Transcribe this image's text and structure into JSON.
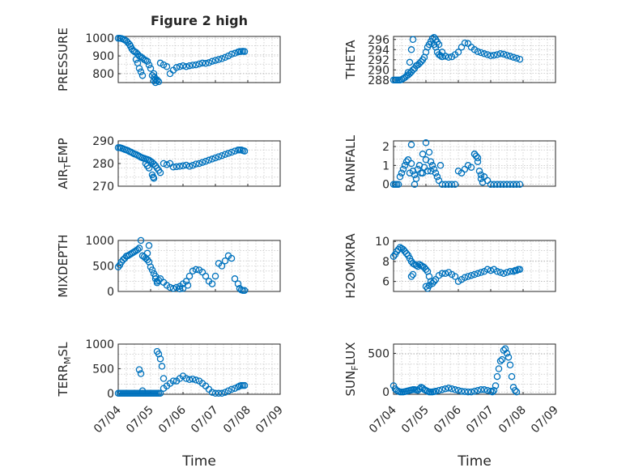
{
  "figure_title": "Figure 2 high",
  "marker_color": "#0072bd",
  "chart_data": [
    {
      "type": "scatter",
      "title": "Figure 2 high",
      "ylabel": "PRESSURE",
      "ylim": [
        750,
        1010
      ],
      "yticks": [
        "800",
        "900",
        "1000"
      ],
      "ytickvals": [
        800,
        900,
        1000
      ],
      "xlim": [
        0,
        5
      ],
      "xticks": [],
      "xlabel": "",
      "x": [
        0,
        0.05,
        0.1,
        0.15,
        0.2,
        0.25,
        0.3,
        0.35,
        0.38,
        0.42,
        0.46,
        0.5,
        0.55,
        0.6,
        0.65,
        0.7,
        0.75,
        0.8,
        0.85,
        0.9,
        0.95,
        1.0,
        1.05,
        1.1,
        1.15,
        1.2,
        1.3,
        1.4,
        1.5,
        1.6,
        1.7,
        1.8,
        1.9,
        2.0,
        2.1,
        2.2,
        2.3,
        2.4,
        2.5,
        2.6,
        2.7,
        2.8,
        2.9,
        3.0,
        3.1,
        3.2,
        3.3,
        3.4,
        3.5,
        3.6,
        3.7,
        3.75,
        3.8,
        3.85,
        3.9,
        0.7,
        0.75,
        0.55,
        0.6,
        0.65,
        1.1,
        1.12,
        1.15,
        1.2,
        1.25
      ],
      "y": [
        1000,
        1000,
        998,
        995,
        990,
        985,
        975,
        965,
        955,
        940,
        930,
        925,
        920,
        910,
        900,
        895,
        888,
        880,
        875,
        870,
        850,
        830,
        790,
        760,
        750,
        765,
        860,
        850,
        840,
        800,
        820,
        835,
        840,
        845,
        840,
        845,
        848,
        850,
        855,
        860,
        858,
        862,
        870,
        875,
        880,
        885,
        892,
        900,
        910,
        915,
        922,
        925,
        925,
        926,
        925,
        810,
        790,
        880,
        860,
        830,
        800,
        780,
        770,
        760,
        755
      ]
    },
    {
      "type": "scatter",
      "title": "",
      "ylabel": "THETA",
      "ylim": [
        287.5,
        296.6
      ],
      "yticks": [
        "288",
        "290",
        "292",
        "294",
        "296"
      ],
      "ytickvals": [
        288,
        290,
        292,
        294,
        296
      ],
      "xlim": [
        0,
        5
      ],
      "xticks": [],
      "xlabel": "",
      "x": [
        0,
        0.05,
        0.1,
        0.15,
        0.2,
        0.25,
        0.3,
        0.35,
        0.4,
        0.45,
        0.5,
        0.55,
        0.6,
        0.65,
        0.7,
        0.75,
        0.8,
        0.85,
        0.9,
        0.95,
        1.0,
        1.05,
        1.1,
        1.15,
        1.2,
        1.25,
        1.3,
        1.35,
        1.4,
        1.5,
        1.6,
        1.7,
        1.8,
        1.9,
        2.0,
        2.1,
        2.2,
        2.3,
        2.4,
        2.5,
        2.6,
        2.7,
        2.8,
        2.9,
        3.0,
        3.1,
        3.2,
        3.3,
        3.4,
        3.5,
        3.6,
        3.7,
        3.8,
        3.9,
        0.45,
        0.5,
        0.55,
        0.6,
        1.25,
        1.3,
        1.35,
        1.4,
        1.45,
        1.5
      ],
      "y": [
        288,
        288,
        288,
        288,
        288,
        288.1,
        288.3,
        288.5,
        288.8,
        289,
        289.3,
        289.6,
        290,
        290.3,
        290.8,
        291,
        291.3,
        291.6,
        292,
        292.5,
        293.5,
        294.5,
        295,
        295.6,
        296.2,
        296.4,
        296,
        295.5,
        295,
        293.5,
        292.7,
        292.5,
        292.6,
        293,
        293.5,
        294.5,
        295.3,
        295.2,
        294.5,
        294,
        293.6,
        293.4,
        293.2,
        293,
        292.8,
        292.9,
        293,
        293.2,
        293.1,
        292.9,
        292.7,
        292.5,
        292.3,
        292.1,
        289.5,
        291.5,
        294,
        296,
        295,
        294.5,
        293.5,
        293,
        292.8,
        292.6
      ]
    },
    {
      "type": "scatter",
      "title": "",
      "ylabel": "AIR_TEMP",
      "ylim": [
        270,
        290
      ],
      "yticks": [
        "270",
        "280",
        "290"
      ],
      "ytickvals": [
        270,
        280,
        290
      ],
      "xlim": [
        0,
        5
      ],
      "xticks": [],
      "xlabel": "",
      "x": [
        0,
        0.05,
        0.1,
        0.15,
        0.2,
        0.25,
        0.3,
        0.35,
        0.4,
        0.45,
        0.5,
        0.55,
        0.6,
        0.65,
        0.7,
        0.75,
        0.8,
        0.85,
        0.9,
        0.95,
        1.0,
        1.05,
        1.1,
        1.15,
        1.2,
        1.25,
        1.3,
        1.4,
        1.5,
        1.6,
        1.7,
        1.8,
        1.9,
        2.0,
        2.1,
        2.2,
        2.3,
        2.4,
        2.5,
        2.6,
        2.7,
        2.8,
        2.9,
        3.0,
        3.1,
        3.2,
        3.3,
        3.4,
        3.5,
        3.6,
        3.7,
        3.75,
        3.8,
        3.85,
        3.9,
        0.85,
        0.9,
        0.95,
        1.05,
        1.08,
        1.1
      ],
      "y": [
        287,
        287,
        286.8,
        286.5,
        286.2,
        286,
        285.7,
        285.3,
        285,
        284.6,
        284.2,
        284,
        283.6,
        283.2,
        282.8,
        282.5,
        282.3,
        282,
        281.8,
        281.5,
        281,
        280.5,
        279.8,
        279,
        278,
        277,
        276,
        280,
        279.5,
        280,
        278.5,
        278.6,
        278.8,
        279,
        279.3,
        278.8,
        279.2,
        279.8,
        280,
        280.5,
        281,
        281.5,
        282,
        282.5,
        283,
        283.5,
        284,
        284.5,
        285,
        285.5,
        286,
        286,
        286,
        285.7,
        285.5,
        280,
        279,
        278,
        275,
        274,
        273.5
      ]
    },
    {
      "type": "scatter",
      "title": "",
      "ylabel": "RAINFALL",
      "ylim": [
        -0.1,
        2.3
      ],
      "yticks": [
        "0",
        "1",
        "2"
      ],
      "ytickvals": [
        0,
        1,
        2
      ],
      "xlim": [
        0,
        5
      ],
      "xticks": [],
      "xlabel": "",
      "x": [
        0,
        0.05,
        0.1,
        0.15,
        0.2,
        0.25,
        0.3,
        0.35,
        0.4,
        0.45,
        0.5,
        0.55,
        0.6,
        0.65,
        0.7,
        0.75,
        0.8,
        0.85,
        0.9,
        0.95,
        1.0,
        1.05,
        1.1,
        1.15,
        1.2,
        1.25,
        1.3,
        1.35,
        1.4,
        1.45,
        1.5,
        1.6,
        1.7,
        1.8,
        1.9,
        2.0,
        2.1,
        2.2,
        2.3,
        2.4,
        2.5,
        2.6,
        2.7,
        2.8,
        2.9,
        3.0,
        3.1,
        3.2,
        3.3,
        3.4,
        3.5,
        3.6,
        3.7,
        3.8,
        3.9,
        0.55,
        0.65,
        0.9,
        1.0,
        1.15,
        2.5,
        2.55,
        2.6,
        2.65,
        2.7,
        2.75
      ],
      "y": [
        0,
        0,
        0,
        0,
        0.4,
        0.6,
        0.8,
        1.0,
        1.2,
        1.3,
        0.6,
        2.1,
        0.7,
        0.5,
        0.3,
        0.8,
        1.0,
        0.6,
        1.6,
        0.9,
        2.2,
        0.7,
        1.7,
        1.2,
        1.0,
        0.8,
        0.6,
        0.4,
        0.2,
        1.0,
        0,
        0,
        0,
        0,
        0,
        0.7,
        0.6,
        0.8,
        1.0,
        0.9,
        1.6,
        1.4,
        0.5,
        0.4,
        0.2,
        0,
        0,
        0,
        0,
        0,
        0,
        0,
        0,
        0,
        0,
        1.1,
        0,
        0.6,
        1.3,
        0.7,
        1.6,
        1.5,
        1.2,
        0.7,
        0.3,
        0.1
      ]
    },
    {
      "type": "scatter",
      "title": "",
      "ylabel": "MIXDEPTH",
      "ylim": [
        0,
        1000
      ],
      "yticks": [
        "0",
        "500",
        "1000"
      ],
      "ytickvals": [
        0,
        500,
        1000
      ],
      "xlim": [
        0,
        5
      ],
      "xticks": [],
      "xlabel": "",
      "x": [
        0,
        0.05,
        0.1,
        0.15,
        0.2,
        0.25,
        0.3,
        0.35,
        0.4,
        0.45,
        0.5,
        0.55,
        0.6,
        0.65,
        0.7,
        0.75,
        0.8,
        0.85,
        0.9,
        0.95,
        1.0,
        1.05,
        1.1,
        1.15,
        1.2,
        1.25,
        1.3,
        1.4,
        1.5,
        1.6,
        1.7,
        1.8,
        1.9,
        2.0,
        2.1,
        2.2,
        2.3,
        2.4,
        2.5,
        2.6,
        2.7,
        2.8,
        2.9,
        3.0,
        3.1,
        3.2,
        3.3,
        3.4,
        3.5,
        3.6,
        3.7,
        3.75,
        3.8,
        3.85,
        3.9,
        0.9,
        0.95,
        1.15,
        1.2,
        1.9,
        2.0,
        2.15
      ],
      "y": [
        480,
        520,
        580,
        620,
        650,
        690,
        700,
        720,
        740,
        760,
        780,
        800,
        820,
        850,
        1000,
        700,
        680,
        650,
        620,
        580,
        480,
        420,
        350,
        250,
        170,
        220,
        250,
        180,
        120,
        80,
        60,
        80,
        100,
        150,
        200,
        300,
        400,
        430,
        420,
        380,
        300,
        200,
        150,
        300,
        550,
        500,
        600,
        700,
        650,
        250,
        150,
        60,
        30,
        20,
        20,
        750,
        900,
        300,
        200,
        50,
        60,
        120
      ]
    },
    {
      "type": "scatter",
      "title": "",
      "ylabel": "H2OMIXRA",
      "ylim": [
        5,
        10.1
      ],
      "yticks": [
        "6",
        "8",
        "10"
      ],
      "ytickvals": [
        6,
        8,
        10
      ],
      "xlim": [
        0,
        5
      ],
      "xticks": [],
      "xlabel": "",
      "x": [
        0,
        0.05,
        0.1,
        0.15,
        0.2,
        0.25,
        0.3,
        0.35,
        0.4,
        0.45,
        0.5,
        0.55,
        0.6,
        0.65,
        0.7,
        0.75,
        0.8,
        0.85,
        0.9,
        0.95,
        1.0,
        1.05,
        1.1,
        1.15,
        1.2,
        1.25,
        1.3,
        1.4,
        1.5,
        1.6,
        1.7,
        1.8,
        1.9,
        2.0,
        2.1,
        2.2,
        2.3,
        2.4,
        2.5,
        2.6,
        2.7,
        2.8,
        2.9,
        3.0,
        3.1,
        3.2,
        3.3,
        3.4,
        3.5,
        3.6,
        3.7,
        3.75,
        3.8,
        3.85,
        3.9,
        0.55,
        0.6,
        1.0,
        1.05,
        1.1
      ],
      "y": [
        8.5,
        8.7,
        9.0,
        9.2,
        9.4,
        9.3,
        9.2,
        9.0,
        8.8,
        8.6,
        8.3,
        8.0,
        7.8,
        7.7,
        7.6,
        7.5,
        7.7,
        7.6,
        7.5,
        7.4,
        7.2,
        7.0,
        6.5,
        6.0,
        5.8,
        6.0,
        6.2,
        6.6,
        6.8,
        6.8,
        6.9,
        6.7,
        6.5,
        6.0,
        6.2,
        6.4,
        6.5,
        6.6,
        6.7,
        6.8,
        6.9,
        7.0,
        7.2,
        7.1,
        7.2,
        7.0,
        6.9,
        6.8,
        6.9,
        7.0,
        7.0,
        7.1,
        7.1,
        7.2,
        7.2,
        6.5,
        6.7,
        5.5,
        5.3,
        5.6
      ]
    },
    {
      "type": "scatter",
      "title": "",
      "ylabel": "TERR_MSL",
      "ylim": [
        -20,
        1000
      ],
      "yticks": [
        "0",
        "500",
        "1000"
      ],
      "ytickvals": [
        0,
        500,
        1000
      ],
      "xlim": [
        0,
        5
      ],
      "xticks": [
        "07/04",
        "07/05",
        "07/06",
        "07/07",
        "07/08",
        "07/09"
      ],
      "xlabel": "Time",
      "x": [
        0,
        0.05,
        0.1,
        0.15,
        0.2,
        0.25,
        0.3,
        0.35,
        0.4,
        0.45,
        0.5,
        0.55,
        0.6,
        0.65,
        0.7,
        0.75,
        0.8,
        0.85,
        0.9,
        0.95,
        1.0,
        1.05,
        1.1,
        1.15,
        1.2,
        1.25,
        1.3,
        1.4,
        1.5,
        1.6,
        1.7,
        1.8,
        1.9,
        2.0,
        2.1,
        2.2,
        2.3,
        2.4,
        2.5,
        2.6,
        2.7,
        2.8,
        2.9,
        3.0,
        3.1,
        3.2,
        3.3,
        3.4,
        3.5,
        3.6,
        3.7,
        3.75,
        3.8,
        3.85,
        3.9,
        0.65,
        0.7,
        0.75,
        1.2,
        1.25,
        1.3,
        1.35,
        1.4
      ],
      "y": [
        0,
        0,
        0,
        0,
        0,
        0,
        0,
        0,
        0,
        0,
        0,
        0,
        0,
        0,
        0,
        0,
        0,
        0,
        0,
        0,
        0,
        0,
        0,
        0,
        0,
        0,
        0,
        100,
        150,
        200,
        250,
        250,
        300,
        350,
        300,
        280,
        290,
        270,
        250,
        200,
        150,
        80,
        20,
        0,
        0,
        0,
        20,
        50,
        80,
        100,
        130,
        150,
        160,
        160,
        160,
        480,
        400,
        50,
        850,
        800,
        700,
        550,
        300
      ]
    },
    {
      "type": "scatter",
      "title": "",
      "ylabel": "SUN_FLUX",
      "ylim": [
        -30,
        620
      ],
      "yticks": [
        "0",
        "500"
      ],
      "ytickvals": [
        0,
        500
      ],
      "xlim": [
        0,
        5
      ],
      "xticks": [
        "07/04",
        "07/05",
        "07/06",
        "07/07",
        "07/08",
        "07/09"
      ],
      "xlabel": "Time",
      "x": [
        0,
        0.05,
        0.1,
        0.15,
        0.2,
        0.25,
        0.3,
        0.35,
        0.4,
        0.45,
        0.5,
        0.55,
        0.6,
        0.65,
        0.7,
        0.75,
        0.8,
        0.85,
        0.9,
        0.95,
        1.0,
        1.05,
        1.1,
        1.15,
        1.2,
        1.25,
        1.3,
        1.4,
        1.5,
        1.6,
        1.7,
        1.8,
        1.9,
        2.0,
        2.1,
        2.2,
        2.3,
        2.4,
        2.5,
        2.6,
        2.7,
        2.8,
        2.9,
        3.0,
        3.05,
        3.1,
        3.15,
        3.2,
        3.25,
        3.3,
        3.35,
        3.4,
        3.45,
        3.5,
        3.55,
        3.6,
        3.65,
        3.7,
        3.75,
        3.8
      ],
      "y": [
        80,
        40,
        20,
        10,
        0,
        0,
        0,
        5,
        10,
        15,
        20,
        25,
        30,
        30,
        25,
        20,
        40,
        60,
        50,
        30,
        20,
        10,
        0,
        0,
        0,
        5,
        10,
        20,
        30,
        40,
        50,
        40,
        30,
        20,
        10,
        5,
        0,
        0,
        10,
        20,
        30,
        30,
        20,
        10,
        0,
        20,
        80,
        200,
        300,
        400,
        420,
        540,
        560,
        500,
        450,
        350,
        200,
        60,
        20,
        0
      ]
    }
  ]
}
